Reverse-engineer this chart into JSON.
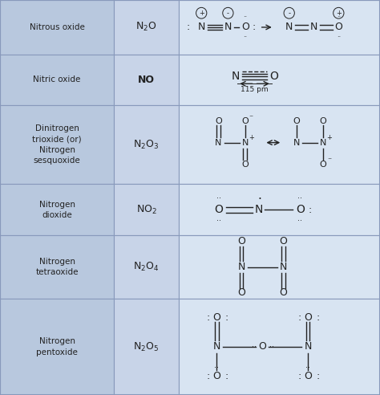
{
  "bg_color": "#c8d4e8",
  "col1_bg": "#b8c8de",
  "col2_bg": "#c8d4e8",
  "col3_bg": "#d8e4f2",
  "border_color": "#8899bb",
  "text_color": "#222222",
  "row_tops": [
    1.0,
    0.862,
    0.734,
    0.534,
    0.404,
    0.244,
    0.0
  ],
  "col_boundaries": [
    0.0,
    0.3,
    0.47,
    1.0
  ],
  "names": [
    "Nitrous oxide",
    "Nitric oxide",
    "Dinitrogen\ntrioxide (or)\nNitrogen\nsesquoxide",
    "Nitrogen\ndioxide",
    "Nitrogen\ntetraoxide",
    "Nitrogen\npentoxide"
  ],
  "formula_texts": [
    "N$_2$O",
    "NO",
    "N$_2$O$_3$",
    "NO$_2$",
    "N$_2$O$_4$",
    "N$_2$O$_5$"
  ],
  "formula_bold": [
    false,
    true,
    false,
    false,
    false,
    false
  ]
}
